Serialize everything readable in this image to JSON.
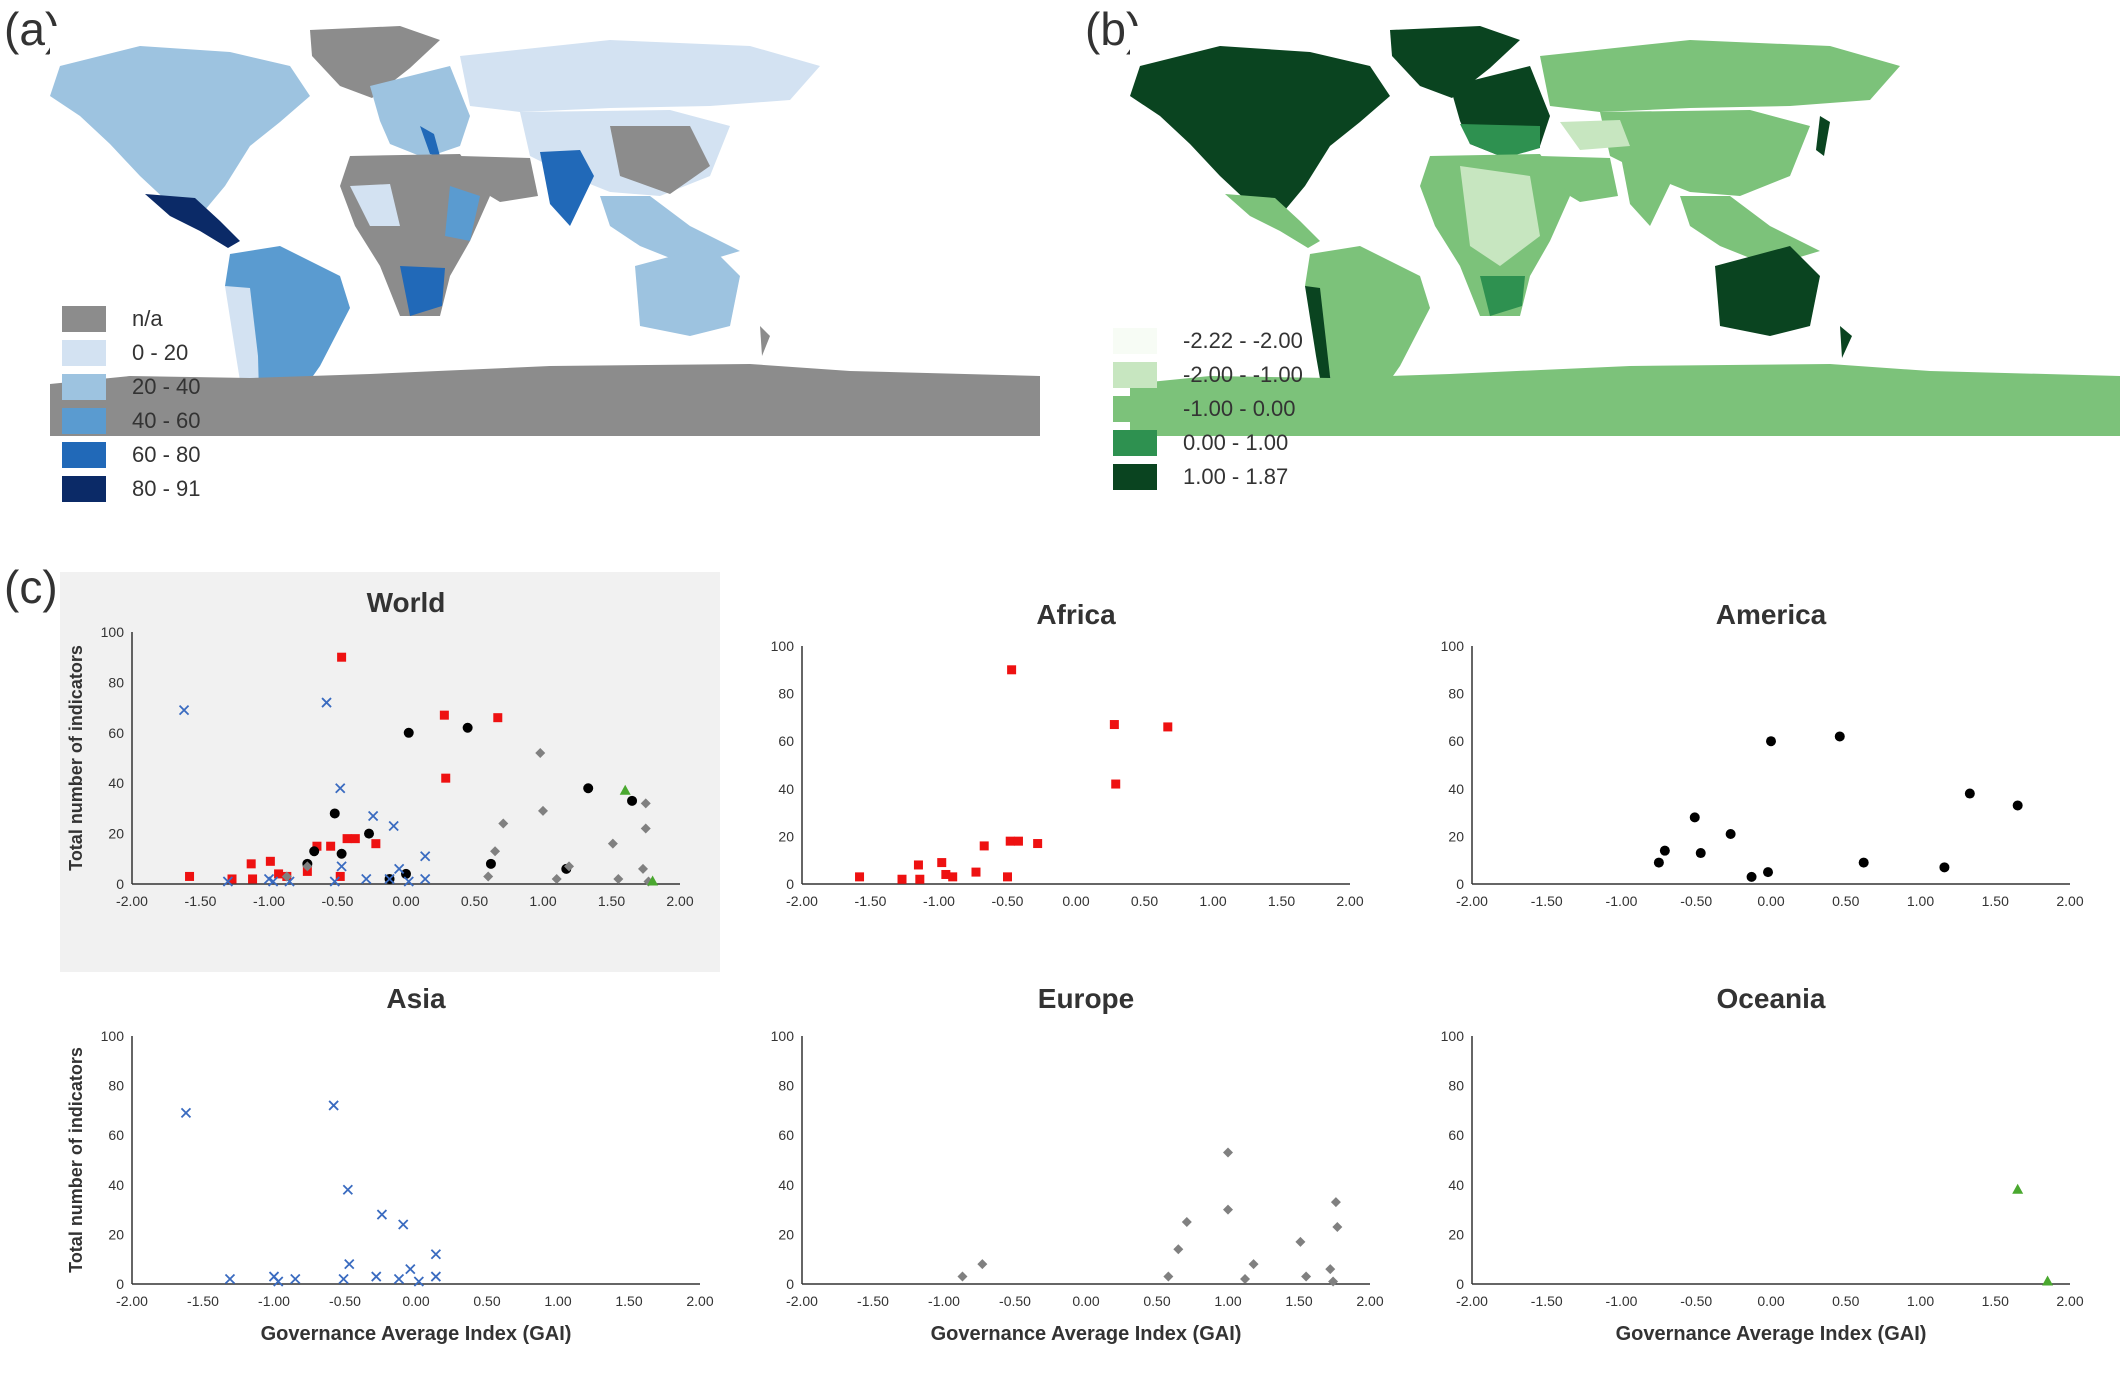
{
  "labels": {
    "a": "(a)",
    "b": "(b)",
    "c": "(c)"
  },
  "colors": {
    "africa": "#ee1111",
    "america": "#000000",
    "asia": "#3a6bc0",
    "europe": "#808080",
    "oceania": "#4aa82f",
    "na_gray": "#8c8c8c",
    "world_bg": "#f1f1f1"
  },
  "map_a": {
    "legend": [
      {
        "label": "n/a",
        "color": "#8c8c8c"
      },
      {
        "label": "0 - 20",
        "color": "#d3e2f2"
      },
      {
        "label": "20 - 40",
        "color": "#9dc3e0"
      },
      {
        "label": "40 - 60",
        "color": "#5a9bd0"
      },
      {
        "label": "60 - 80",
        "color": "#2169b8"
      },
      {
        "label": "80 - 91",
        "color": "#0b2a67"
      }
    ]
  },
  "map_b": {
    "legend": [
      {
        "label": "-2.22 - -2.00",
        "color": "#f7fcf5"
      },
      {
        "label": "-2.00 - -1.00",
        "color": "#c7e6c0"
      },
      {
        "label": "-1.00 - 0.00",
        "color": "#7cc27a"
      },
      {
        "label": "0.00 - 1.00",
        "color": "#2e9150"
      },
      {
        "label": "1.00 - 1.87",
        "color": "#0a4420"
      }
    ]
  },
  "axes": {
    "ylabel": "Total number of indicators",
    "xlabel": "Governance Average Index (GAI)",
    "xticks": [
      "-2.00",
      "-1.50",
      "-1.00",
      "-0.50",
      "0.00",
      "0.50",
      "1.00",
      "1.50",
      "2.00"
    ],
    "yticks": [
      "0",
      "20",
      "40",
      "60",
      "80",
      "100"
    ]
  },
  "chart_data": [
    {
      "type": "scatter",
      "title": "World",
      "xlim": [
        -2,
        2
      ],
      "ylim": [
        0,
        100
      ],
      "series": [
        {
          "key": "africa",
          "marker": "square",
          "points": [
            [
              -1.58,
              3
            ],
            [
              -1.27,
              2
            ],
            [
              -1.13,
              8
            ],
            [
              -1.12,
              2
            ],
            [
              -0.99,
              9
            ],
            [
              -0.93,
              4
            ],
            [
              -0.87,
              3
            ],
            [
              -0.72,
              5
            ],
            [
              -0.65,
              15
            ],
            [
              -0.55,
              15
            ],
            [
              -0.48,
              3
            ],
            [
              -0.47,
              90
            ],
            [
              -0.43,
              18
            ],
            [
              -0.37,
              18
            ],
            [
              -0.22,
              16
            ],
            [
              0.28,
              67
            ],
            [
              0.29,
              42
            ],
            [
              0.67,
              66
            ]
          ]
        },
        {
          "key": "america",
          "marker": "circle",
          "points": [
            [
              -0.72,
              8
            ],
            [
              -0.67,
              13
            ],
            [
              -0.52,
              28
            ],
            [
              -0.47,
              12
            ],
            [
              -0.27,
              20
            ],
            [
              -0.12,
              2
            ],
            [
              0.0,
              4
            ],
            [
              0.02,
              60
            ],
            [
              0.45,
              62
            ],
            [
              0.62,
              8
            ],
            [
              1.17,
              6
            ],
            [
              1.33,
              38
            ],
            [
              1.65,
              33
            ]
          ]
        },
        {
          "key": "asia",
          "marker": "x",
          "points": [
            [
              -1.62,
              69
            ],
            [
              -1.3,
              1
            ],
            [
              -1.0,
              2
            ],
            [
              -0.97,
              1
            ],
            [
              -0.85,
              1
            ],
            [
              -0.58,
              72
            ],
            [
              -0.52,
              1
            ],
            [
              -0.48,
              38
            ],
            [
              -0.47,
              7
            ],
            [
              -0.29,
              2
            ],
            [
              -0.24,
              27
            ],
            [
              -0.12,
              2
            ],
            [
              -0.09,
              23
            ],
            [
              -0.05,
              6
            ],
            [
              0.02,
              1
            ],
            [
              0.14,
              11
            ],
            [
              0.14,
              2
            ]
          ]
        },
        {
          "key": "europe",
          "marker": "diamond",
          "points": [
            [
              -0.87,
              3
            ],
            [
              -0.72,
              7
            ],
            [
              0.6,
              3
            ],
            [
              0.65,
              13
            ],
            [
              0.71,
              24
            ],
            [
              0.98,
              52
            ],
            [
              1.0,
              29
            ],
            [
              1.1,
              2
            ],
            [
              1.19,
              7
            ],
            [
              1.51,
              16
            ],
            [
              1.55,
              2
            ],
            [
              1.73,
              6
            ],
            [
              1.75,
              32
            ],
            [
              1.75,
              22
            ],
            [
              1.77,
              1
            ]
          ]
        },
        {
          "key": "oceania",
          "marker": "triangle",
          "points": [
            [
              1.6,
              37
            ],
            [
              1.8,
              1
            ]
          ]
        }
      ]
    },
    {
      "type": "scatter",
      "title": "Africa",
      "xlim": [
        -2,
        2
      ],
      "ylim": [
        0,
        100
      ],
      "series": [
        {
          "key": "africa",
          "marker": "square",
          "points": [
            [
              -1.58,
              3
            ],
            [
              -1.27,
              2
            ],
            [
              -1.15,
              8
            ],
            [
              -1.14,
              2
            ],
            [
              -0.98,
              9
            ],
            [
              -0.95,
              4
            ],
            [
              -0.9,
              3
            ],
            [
              -0.73,
              5
            ],
            [
              -0.67,
              16
            ],
            [
              -0.5,
              3
            ],
            [
              -0.48,
              18
            ],
            [
              -0.47,
              90
            ],
            [
              -0.42,
              18
            ],
            [
              -0.28,
              17
            ],
            [
              0.28,
              67
            ],
            [
              0.29,
              42
            ],
            [
              0.67,
              66
            ]
          ]
        }
      ]
    },
    {
      "type": "scatter",
      "title": "America",
      "xlim": [
        -2,
        2
      ],
      "ylim": [
        0,
        100
      ],
      "series": [
        {
          "key": "america",
          "marker": "circle",
          "points": [
            [
              -0.75,
              9
            ],
            [
              -0.71,
              14
            ],
            [
              -0.51,
              28
            ],
            [
              -0.47,
              13
            ],
            [
              -0.27,
              21
            ],
            [
              -0.13,
              3
            ],
            [
              -0.02,
              5
            ],
            [
              0.0,
              60
            ],
            [
              0.46,
              62
            ],
            [
              0.62,
              9
            ],
            [
              1.16,
              7
            ],
            [
              1.33,
              38
            ],
            [
              1.65,
              33
            ]
          ]
        }
      ]
    },
    {
      "type": "scatter",
      "title": "Asia",
      "xlim": [
        -2,
        2
      ],
      "ylim": [
        0,
        100
      ],
      "series": [
        {
          "key": "asia",
          "marker": "x",
          "points": [
            [
              -1.62,
              69
            ],
            [
              -1.31,
              2
            ],
            [
              -1.0,
              3
            ],
            [
              -0.97,
              1
            ],
            [
              -0.85,
              2
            ],
            [
              -0.58,
              72
            ],
            [
              -0.51,
              2
            ],
            [
              -0.48,
              38
            ],
            [
              -0.47,
              8
            ],
            [
              -0.28,
              3
            ],
            [
              -0.24,
              28
            ],
            [
              -0.12,
              2
            ],
            [
              -0.09,
              24
            ],
            [
              -0.04,
              6
            ],
            [
              0.02,
              1
            ],
            [
              0.14,
              12
            ],
            [
              0.14,
              3
            ]
          ]
        }
      ]
    },
    {
      "type": "scatter",
      "title": "Europe",
      "xlim": [
        -2,
        2
      ],
      "ylim": [
        0,
        100
      ],
      "series": [
        {
          "key": "europe",
          "marker": "diamond",
          "points": [
            [
              -0.87,
              3
            ],
            [
              -0.73,
              8
            ],
            [
              0.58,
              3
            ],
            [
              0.65,
              14
            ],
            [
              0.71,
              25
            ],
            [
              1.0,
              53
            ],
            [
              1.0,
              30
            ],
            [
              1.12,
              2
            ],
            [
              1.18,
              8
            ],
            [
              1.51,
              17
            ],
            [
              1.55,
              3
            ],
            [
              1.72,
              6
            ],
            [
              1.76,
              33
            ],
            [
              1.77,
              23
            ],
            [
              1.74,
              1
            ]
          ]
        }
      ]
    },
    {
      "type": "scatter",
      "title": "Oceania",
      "xlim": [
        -2,
        2
      ],
      "ylim": [
        0,
        100
      ],
      "series": [
        {
          "key": "oceania",
          "marker": "triangle",
          "points": [
            [
              1.65,
              38
            ],
            [
              1.85,
              1
            ]
          ]
        }
      ]
    }
  ]
}
